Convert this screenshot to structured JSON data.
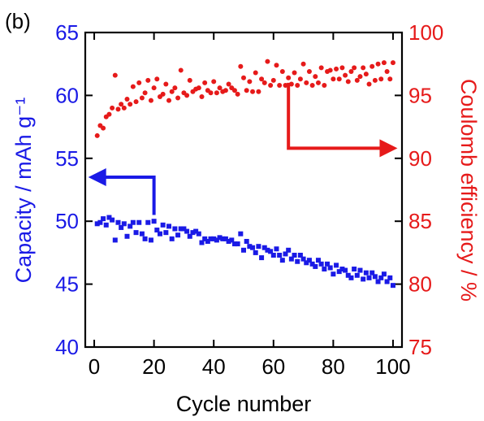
{
  "chart_data": {
    "type": "scatter",
    "panel_label": "(b)",
    "xlabel": "Cycle number",
    "ylabel_left": "Capacity / mAh g⁻¹",
    "ylabel_right": "Coulomb efficiency / %",
    "xlim": [
      -3,
      103
    ],
    "ylim_left": [
      40,
      65
    ],
    "ylim_right": [
      75,
      100
    ],
    "x_ticks": [
      "0",
      "20",
      "40",
      "60",
      "80",
      "100"
    ],
    "y_ticks_left": [
      "40",
      "45",
      "50",
      "55",
      "60",
      "65"
    ],
    "y_ticks_right": [
      "75",
      "80",
      "85",
      "90",
      "95",
      "100"
    ],
    "grid": false,
    "colors": {
      "capacity": "#1a1ae6",
      "efficiency": "#e61a1a",
      "axes": "#000000"
    },
    "series": [
      {
        "axis": "left",
        "marker": "square",
        "x": [
          1,
          2,
          3,
          4,
          5,
          6,
          7,
          8,
          9,
          10,
          11,
          12,
          13,
          14,
          15,
          16,
          17,
          18,
          19,
          20,
          21,
          22,
          23,
          24,
          25,
          26,
          27,
          28,
          29,
          30,
          31,
          32,
          33,
          34,
          35,
          36,
          37,
          38,
          39,
          40,
          41,
          42,
          43,
          44,
          45,
          46,
          47,
          48,
          49,
          50,
          51,
          52,
          53,
          54,
          55,
          56,
          57,
          58,
          59,
          60,
          61,
          62,
          63,
          64,
          65,
          66,
          67,
          68,
          69,
          70,
          71,
          72,
          73,
          74,
          75,
          76,
          77,
          78,
          79,
          80,
          81,
          82,
          83,
          84,
          85,
          86,
          87,
          88,
          89,
          90,
          91,
          92,
          93,
          94,
          95,
          96,
          97,
          98,
          99,
          100
        ],
        "y": [
          49.8,
          49.9,
          50.2,
          49.7,
          50.3,
          50.1,
          48.5,
          49.9,
          49.5,
          49.8,
          48.8,
          49.6,
          49.9,
          49.1,
          49.9,
          49.0,
          48.6,
          49.9,
          48.5,
          50.0,
          49.3,
          49.0,
          49.7,
          49.1,
          49.6,
          48.6,
          49.4,
          48.9,
          49.4,
          49.4,
          49.2,
          48.8,
          49.1,
          49.2,
          49.0,
          48.3,
          48.6,
          48.4,
          48.6,
          48.6,
          48.5,
          48.7,
          48.6,
          48.6,
          48.4,
          48.5,
          48.2,
          48.2,
          49.0,
          47.7,
          48.4,
          48.0,
          47.9,
          47.5,
          48.0,
          47.1,
          47.9,
          47.7,
          47.6,
          47.3,
          47.8,
          47.3,
          46.9,
          47.4,
          47.7,
          47.0,
          47.3,
          46.8,
          47.3,
          47.0,
          46.7,
          46.9,
          46.6,
          46.4,
          46.9,
          46.6,
          46.2,
          46.6,
          46.3,
          45.8,
          46.5,
          46.0,
          46.2,
          46.1,
          45.7,
          45.5,
          46.2,
          45.7,
          46.1,
          45.4,
          45.9,
          45.5,
          45.9,
          45.6,
          45.2,
          45.5,
          45.8,
          45.2,
          45.5,
          44.9
        ]
      },
      {
        "axis": "right",
        "marker": "circle",
        "x": [
          1,
          2,
          3,
          4,
          5,
          6,
          7,
          8,
          9,
          10,
          11,
          12,
          13,
          14,
          15,
          16,
          17,
          18,
          19,
          20,
          21,
          22,
          23,
          24,
          25,
          26,
          27,
          28,
          29,
          30,
          31,
          32,
          33,
          34,
          35,
          36,
          37,
          38,
          39,
          40,
          41,
          42,
          43,
          44,
          45,
          46,
          47,
          48,
          49,
          50,
          51,
          52,
          53,
          54,
          55,
          56,
          57,
          58,
          59,
          60,
          61,
          62,
          63,
          64,
          65,
          66,
          67,
          68,
          69,
          70,
          71,
          72,
          73,
          74,
          75,
          76,
          77,
          78,
          79,
          80,
          81,
          82,
          83,
          84,
          85,
          86,
          87,
          88,
          89,
          90,
          91,
          92,
          93,
          94,
          95,
          96,
          97,
          98,
          99,
          100
        ],
        "y": [
          91.8,
          92.6,
          92.4,
          93.3,
          93.5,
          94.0,
          96.6,
          93.9,
          94.3,
          94.0,
          94.7,
          94.3,
          95.7,
          94.5,
          96.0,
          94.8,
          95.2,
          96.2,
          94.6,
          95.6,
          96.3,
          94.9,
          95.1,
          95.9,
          94.6,
          95.3,
          95.6,
          94.8,
          97.0,
          95.2,
          95.0,
          96.2,
          95.3,
          95.5,
          95.6,
          94.9,
          96.0,
          95.4,
          95.2,
          96.1,
          95.2,
          95.6,
          95.3,
          95.4,
          95.9,
          95.6,
          95.4,
          95.1,
          97.3,
          96.4,
          95.4,
          96.1,
          95.3,
          96.8,
          95.3,
          96.3,
          96.0,
          97.7,
          95.8,
          96.2,
          97.4,
          95.8,
          96.9,
          95.8,
          96.4,
          95.9,
          96.8,
          95.8,
          96.3,
          97.5,
          96.0,
          96.9,
          95.8,
          96.5,
          96.0,
          97.2,
          95.8,
          96.9,
          97.0,
          96.3,
          97.1,
          96.3,
          97.2,
          96.6,
          96.1,
          96.9,
          97.2,
          96.2,
          96.5,
          97.2,
          96.7,
          95.9,
          97.3,
          96.2,
          97.5,
          96.3,
          97.6,
          96.9,
          96.3,
          97.6
        ]
      }
    ],
    "annotations": [
      {
        "type": "arrow",
        "points_to": "left",
        "anchor_x": 20,
        "anchor_y_left": 50.5,
        "turn_y_left": 53.5,
        "end_x": -2
      },
      {
        "type": "arrow",
        "points_to": "right",
        "anchor_x": 65,
        "anchor_y_right": 96,
        "turn_y_right": 90.8,
        "end_x": 101.5
      }
    ]
  }
}
